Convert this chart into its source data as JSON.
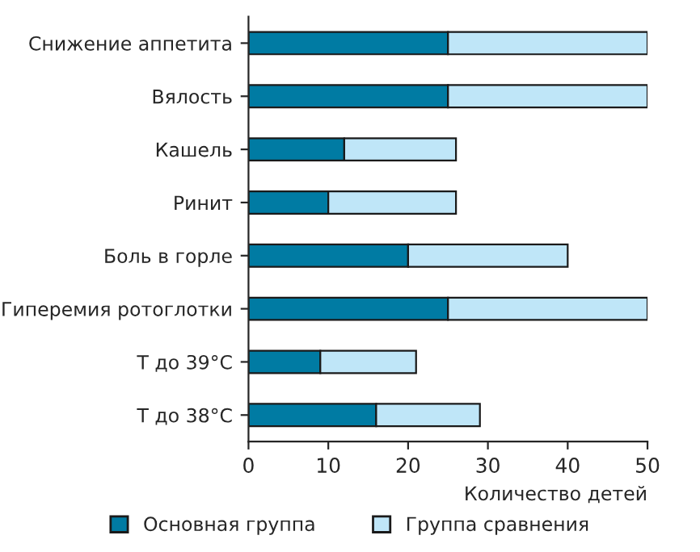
{
  "chart_data": {
    "type": "bar",
    "orientation": "horizontal",
    "stacked": true,
    "xlabel": "Количество детей",
    "categories": [
      "Снижение аппетита",
      "Вялость",
      "Кашель",
      "Ринит",
      "Боль в горле",
      "Гиперемия ротоглотки",
      "Т до 39°С",
      "Т до 38°С"
    ],
    "series": [
      {
        "name": "Основная группа",
        "color": "#007ba3",
        "values": [
          25,
          25,
          12,
          10,
          20,
          25,
          9,
          16
        ]
      },
      {
        "name": "Группа сравнения",
        "color": "#bfe6f8",
        "values": [
          25,
          25,
          14,
          16,
          20,
          25,
          12,
          13
        ]
      }
    ],
    "xlim": [
      0,
      50
    ],
    "xticks": [
      0,
      10,
      20,
      30,
      40,
      50
    ],
    "grid": false,
    "legend": "bottom"
  }
}
